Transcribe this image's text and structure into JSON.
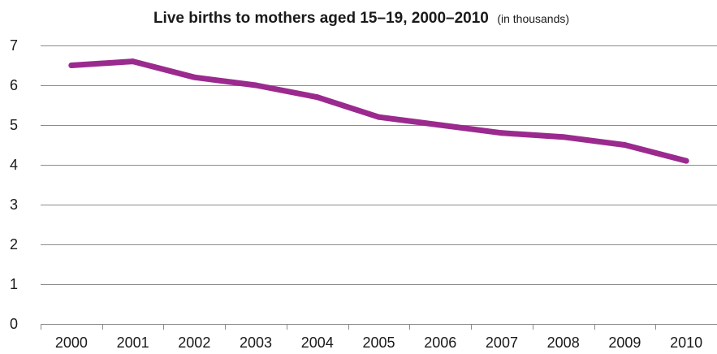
{
  "chart_data": {
    "type": "line",
    "title": "Live births to mothers aged 15–19, 2000–2010",
    "subtitle": "(in thousands)",
    "xlabel": "",
    "ylabel": "",
    "categories": [
      "2000",
      "2001",
      "2002",
      "2003",
      "2004",
      "2005",
      "2006",
      "2007",
      "2008",
      "2009",
      "2010"
    ],
    "series": [
      {
        "values": [
          6.5,
          6.6,
          6.2,
          6.0,
          5.7,
          5.2,
          5.0,
          4.8,
          4.7,
          4.5,
          4.1
        ],
        "color": "#9b2a8f"
      }
    ],
    "ylim": [
      0,
      7
    ],
    "yticks": [
      0,
      1,
      2,
      3,
      4,
      5,
      6,
      7
    ],
    "grid": true,
    "legend": "none"
  }
}
